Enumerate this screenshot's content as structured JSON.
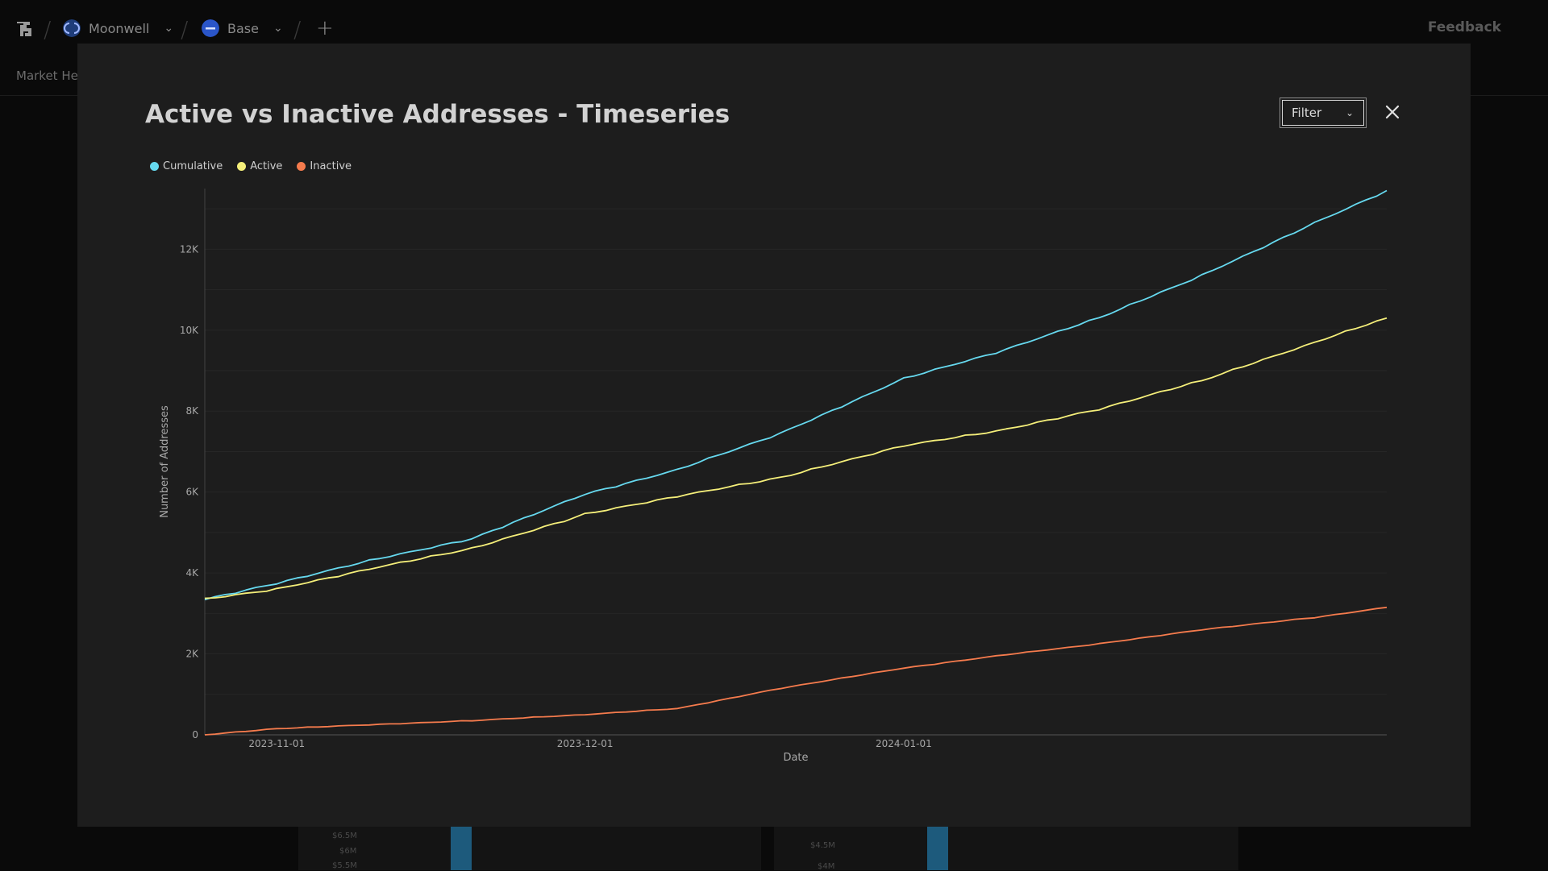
{
  "header": {
    "project": "Moonwell",
    "chain": "Base",
    "feedback_label": "Feedback",
    "subnav_label": "Market Hea"
  },
  "background": {
    "left_ticks": [
      "$6.5M",
      "$6M",
      "$5.5M"
    ],
    "right_ticks": [
      "$4.5M",
      "$4M"
    ]
  },
  "modal": {
    "title": "Active vs Inactive Addresses - Timeseries",
    "filter_label": "Filter"
  },
  "colors": {
    "cumulative": "#66d9ef",
    "active": "#f5ef7a",
    "inactive": "#f57b4d"
  },
  "chart_data": {
    "type": "line",
    "title": "Active vs Inactive Addresses - Timeseries",
    "xlabel": "Date",
    "ylabel": "Number of Addresses",
    "x_range": [
      "2023-10-25",
      "2024-02-17"
    ],
    "x_ticks": [
      "2023-11-01",
      "2023-12-01",
      "2024-01-01"
    ],
    "ylim": [
      0,
      13500
    ],
    "y_ticks": [
      0,
      2000,
      4000,
      6000,
      8000,
      10000,
      12000
    ],
    "y_tick_labels": [
      "0",
      "2K",
      "4K",
      "6K",
      "8K",
      "10K",
      "12K"
    ],
    "legend_position": "top-left",
    "x": [
      "2023-10-25",
      "2023-11-01",
      "2023-11-10",
      "2023-11-20",
      "2023-12-01",
      "2023-12-10",
      "2023-12-20",
      "2024-01-01",
      "2024-01-10",
      "2024-01-20",
      "2024-01-30",
      "2024-02-10",
      "2024-02-17"
    ],
    "series": [
      {
        "name": "Cumulative",
        "values": [
          3350,
          3750,
          4300,
          4850,
          5950,
          6550,
          7450,
          8800,
          9450,
          10300,
          11350,
          12650,
          13450
        ]
      },
      {
        "name": "Active",
        "values": [
          3350,
          3600,
          4100,
          4600,
          5450,
          5900,
          6350,
          7150,
          7500,
          8050,
          8750,
          9700,
          10300
        ]
      },
      {
        "name": "Inactive",
        "values": [
          0,
          150,
          250,
          350,
          500,
          650,
          1150,
          1650,
          1950,
          2250,
          2600,
          2900,
          3150
        ]
      }
    ]
  }
}
